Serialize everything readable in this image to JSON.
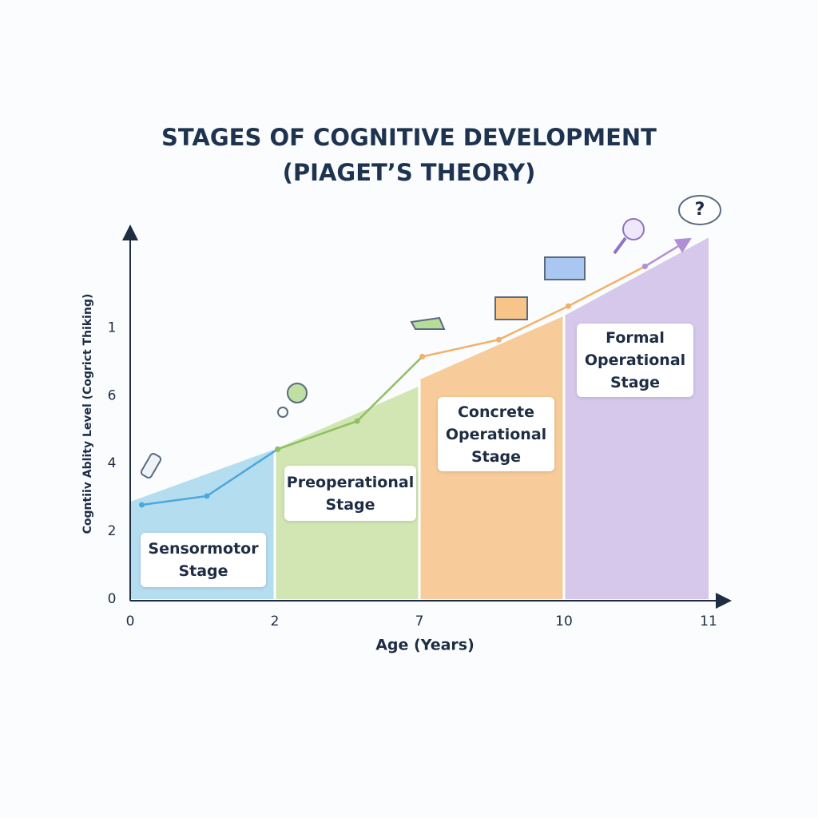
{
  "chart_data": {
    "type": "stage-line",
    "title": "STAGES OF COGNITIVE DEVELOPMENT (PIAGET’S THEORY)",
    "x_label": "Age (Years)",
    "y_label": "Cogntiiv Ablity Level (Cogrict Thiking)",
    "categories": [
      "0",
      "2",
      "7",
      "10",
      "11"
    ],
    "ylim": [
      0,
      11
    ],
    "yticks": [
      0,
      2,
      4,
      6,
      {
        "value": 8,
        "label": "1"
      }
    ],
    "stages": [
      {
        "name": "Sensormotor Stage",
        "color": "#b5ddf0",
        "x": [
          0,
          1
        ],
        "top": [
          2.87,
          4.42
        ]
      },
      {
        "name": "Preoperational Stage",
        "color": "#d2e6b3",
        "x": [
          1,
          2
        ],
        "top": [
          4.42,
          6.28
        ]
      },
      {
        "name": "Concrete Operational Stage",
        "color": "#f7cc9a",
        "x": [
          2,
          3
        ],
        "top": [
          6.47,
          8.35
        ]
      },
      {
        "name": "Formal Operational Stage",
        "color": "#d5c8ea",
        "x": [
          3,
          4
        ],
        "top": [
          8.35,
          10.66
        ]
      }
    ],
    "series": [
      {
        "color": "#4aa8dc",
        "x": [
          0.08,
          0.53,
          1.02
        ],
        "values": [
          2.78,
          3.04,
          4.42
        ]
      },
      {
        "color": "#8dc063",
        "x": [
          1.02,
          1.57,
          2.02
        ],
        "values": [
          4.42,
          5.25,
          7.15
        ]
      },
      {
        "color": "#f2b068",
        "x": [
          2.02,
          2.55,
          3.03,
          3.56
        ],
        "values": [
          7.15,
          7.65,
          8.64,
          9.81
        ]
      },
      {
        "color": "#b08fd6",
        "x": [
          3.56,
          3.86
        ],
        "values": [
          9.81,
          10.59
        ]
      }
    ]
  }
}
